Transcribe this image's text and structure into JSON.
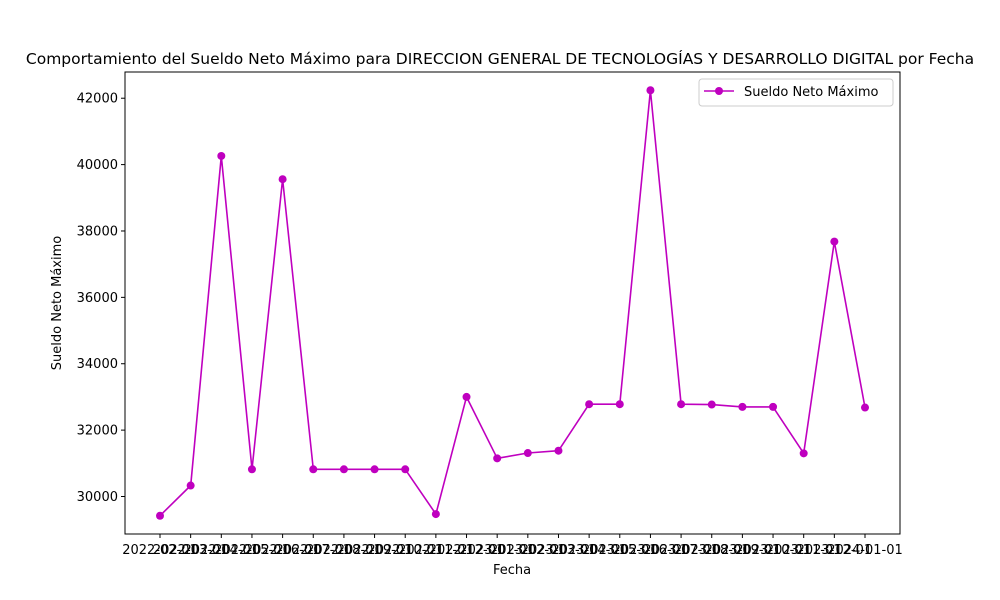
{
  "chart_data": {
    "type": "line",
    "title": "Comportamiento del Sueldo Neto Máximo para DIRECCION GENERAL DE TECNOLOGÍAS Y DESARROLLO DIGITAL por Fecha",
    "xlabel": "Fecha",
    "ylabel": "Sueldo Neto Máximo",
    "x": [
      "2022-02-01",
      "2022-03-01",
      "2022-04-01",
      "2022-05-01",
      "2022-06-01",
      "2022-07-01",
      "2022-08-01",
      "2022-09-01",
      "2022-10-01",
      "2022-11-01",
      "2022-12-01",
      "2023-01-01",
      "2023-02-01",
      "2023-03-01",
      "2023-04-01",
      "2023-05-01",
      "2023-06-01",
      "2023-07-01",
      "2023-08-01",
      "2023-09-01",
      "2023-10-01",
      "2023-11-01",
      "2023-12-01",
      "2024-01-01"
    ],
    "series": [
      {
        "name": "Sueldo Neto Máximo",
        "color": "#bf00bf",
        "marker": "circle",
        "values": [
          29420,
          30330,
          40260,
          30820,
          39560,
          30820,
          30820,
          30820,
          30820,
          29470,
          33000,
          31150,
          31310,
          31380,
          32780,
          32780,
          42240,
          32780,
          32770,
          32700,
          32700,
          31300,
          37680,
          32680
        ]
      }
    ],
    "yticks": [
      30000,
      32000,
      34000,
      36000,
      38000,
      40000,
      42000
    ],
    "ylim": [
      28870,
      42790
    ],
    "grid": false,
    "legend": "top-right"
  }
}
